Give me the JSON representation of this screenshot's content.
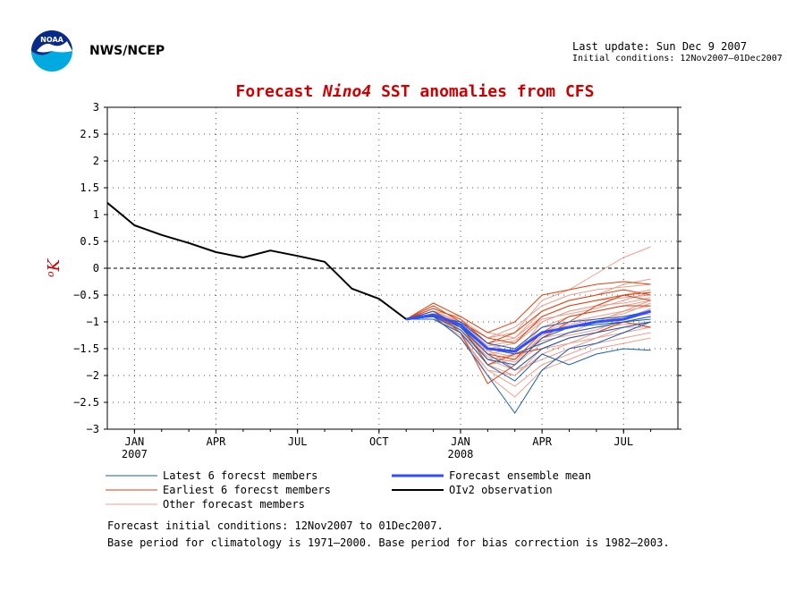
{
  "header": {
    "agency": "NWS/NCEP",
    "last_update": "Last update: Sun Dec 9 2007",
    "initial_conditions": "Initial conditions: 12Nov2007–01Dec2007",
    "logo_text": "NOAA"
  },
  "chart_data": {
    "type": "line",
    "title_parts": [
      "Forecast ",
      "Nino4",
      "  SST anomalies from CFS"
    ],
    "ylabel": "oK",
    "ylim": [
      -3,
      3
    ],
    "yticks": [
      "3",
      "2.5",
      "2",
      "1.5",
      "1",
      "0.5",
      "0",
      "−0.5",
      "−1",
      "−1.5",
      "−2",
      "−2.5",
      "−3"
    ],
    "ytick_values": [
      3,
      2.5,
      2,
      1.5,
      1,
      0.5,
      0,
      -0.5,
      -1,
      -1.5,
      -2,
      -2.5,
      -3
    ],
    "x_range_months": [
      -1,
      20
    ],
    "xticks": [
      {
        "label": "JAN",
        "sub": "2007",
        "m": 0
      },
      {
        "label": "APR",
        "sub": "",
        "m": 3
      },
      {
        "label": "JUL",
        "sub": "",
        "m": 6
      },
      {
        "label": "OCT",
        "sub": "",
        "m": 9
      },
      {
        "label": "JAN",
        "sub": "2008",
        "m": 12
      },
      {
        "label": "APR",
        "sub": "",
        "m": 15
      },
      {
        "label": "JUL",
        "sub": "",
        "m": 18
      }
    ],
    "grid": true,
    "zero_line": true,
    "series": [
      {
        "name": "OIv2 observation",
        "role": "observation",
        "color": "#000000",
        "x": [
          -1,
          0,
          1,
          2,
          3,
          4,
          5,
          6,
          7,
          8,
          9,
          10
        ],
        "y": [
          1.22,
          0.8,
          0.62,
          0.47,
          0.3,
          0.2,
          0.33,
          0.23,
          0.12,
          -0.38,
          -0.57,
          -0.95
        ]
      },
      {
        "name": "Forecast ensemble mean",
        "role": "mean",
        "color": "#3050ff",
        "x": [
          10,
          11,
          12,
          13,
          14,
          15,
          16,
          17,
          18,
          19
        ],
        "y": [
          -0.95,
          -0.87,
          -1.05,
          -1.5,
          -1.55,
          -1.2,
          -1.1,
          -1.0,
          -0.95,
          -0.8
        ]
      }
    ],
    "members": {
      "x": [
        10,
        11,
        12,
        13,
        14,
        15,
        16,
        17,
        18,
        19
      ],
      "latest": {
        "name": "Latest 6 forecst members",
        "color": "#1a5fb4",
        "lines": [
          [
            -0.95,
            -0.9,
            -1.3,
            -2.0,
            -2.7,
            -1.9,
            -1.5,
            -1.4,
            -1.2,
            -1.0
          ],
          [
            -0.95,
            -0.95,
            -1.2,
            -1.8,
            -2.1,
            -1.6,
            -1.8,
            -1.6,
            -1.5,
            -1.53
          ],
          [
            -0.95,
            -0.85,
            -1.1,
            -1.5,
            -1.6,
            -1.4,
            -1.2,
            -1.1,
            -1.0,
            -0.9
          ],
          [
            -0.95,
            -0.9,
            -1.0,
            -1.4,
            -1.5,
            -1.1,
            -1.0,
            -0.95,
            -0.9,
            -0.8
          ],
          [
            -0.95,
            -0.8,
            -1.1,
            -1.6,
            -1.9,
            -1.5,
            -1.3,
            -1.2,
            -1.1,
            -1.0
          ],
          [
            -0.95,
            -0.9,
            -1.15,
            -1.7,
            -1.8,
            -1.3,
            -1.1,
            -1.05,
            -1.0,
            -0.95
          ]
        ]
      },
      "earliest": {
        "name": "Earliest 6 forecst members",
        "color": "#e04010",
        "lines": [
          [
            -0.95,
            -0.65,
            -0.9,
            -1.2,
            -1.0,
            -0.5,
            -0.4,
            -0.3,
            -0.25,
            -0.3
          ],
          [
            -0.95,
            -0.8,
            -1.2,
            -2.15,
            -1.8,
            -1.3,
            -1.0,
            -0.7,
            -0.5,
            -0.6
          ],
          [
            -0.95,
            -0.7,
            -1.0,
            -1.3,
            -1.4,
            -0.9,
            -0.7,
            -0.6,
            -0.5,
            -0.45
          ],
          [
            -0.95,
            -0.9,
            -1.1,
            -1.6,
            -1.7,
            -1.2,
            -0.9,
            -0.8,
            -0.7,
            -0.7
          ],
          [
            -0.95,
            -0.75,
            -0.95,
            -1.4,
            -1.2,
            -0.8,
            -0.6,
            -0.5,
            -0.4,
            -0.5
          ],
          [
            -0.95,
            -0.85,
            -1.05,
            -1.8,
            -1.6,
            -1.5,
            -1.3,
            -1.2,
            -1.0,
            -1.1
          ]
        ]
      },
      "other": {
        "name": "Other forecast members",
        "color": "#e9a090",
        "lines": [
          [
            -0.95,
            -0.8,
            -1.0,
            -1.3,
            -1.2,
            -0.6,
            -0.4,
            -0.1,
            0.2,
            0.4
          ],
          [
            -0.95,
            -0.9,
            -1.3,
            -1.9,
            -2.2,
            -1.8,
            -1.6,
            -1.4,
            -1.3,
            -1.2
          ],
          [
            -0.95,
            -0.85,
            -1.1,
            -1.5,
            -1.4,
            -1.0,
            -0.8,
            -0.7,
            -0.5,
            -0.4
          ],
          [
            -0.95,
            -0.95,
            -1.2,
            -1.7,
            -1.9,
            -1.5,
            -1.4,
            -1.3,
            -1.2,
            -1.1
          ],
          [
            -0.95,
            -0.8,
            -1.0,
            -1.4,
            -1.3,
            -0.8,
            -0.6,
            -0.5,
            -0.3,
            -0.2
          ],
          [
            -0.95,
            -0.9,
            -1.2,
            -2.0,
            -2.4,
            -1.9,
            -1.7,
            -1.5,
            -1.4,
            -1.3
          ],
          [
            -0.95,
            -0.85,
            -1.05,
            -1.6,
            -1.5,
            -1.2,
            -1.0,
            -0.9,
            -0.8,
            -0.7
          ],
          [
            -0.95,
            -0.75,
            -0.95,
            -1.3,
            -1.1,
            -0.7,
            -0.5,
            -0.4,
            -0.35,
            -0.3
          ],
          [
            -0.95,
            -0.9,
            -1.1,
            -1.7,
            -1.8,
            -1.4,
            -1.2,
            -1.0,
            -0.9,
            -0.85
          ],
          [
            -0.95,
            -0.8,
            -1.2,
            -1.8,
            -1.7,
            -1.3,
            -1.1,
            -1.0,
            -0.8,
            -0.6
          ],
          [
            -0.95,
            -0.95,
            -1.25,
            -1.9,
            -2.0,
            -1.6,
            -1.4,
            -1.2,
            -1.0,
            -0.9
          ],
          [
            -0.95,
            -0.85,
            -1.0,
            -1.4,
            -1.6,
            -1.1,
            -0.9,
            -0.8,
            -0.7,
            -0.6
          ],
          [
            -0.95,
            -0.8,
            -0.9,
            -1.2,
            -1.3,
            -0.9,
            -0.7,
            -0.6,
            -0.55,
            -0.5
          ],
          [
            -0.95,
            -0.9,
            -1.15,
            -1.6,
            -1.7,
            -1.3,
            -1.2,
            -1.1,
            -1.05,
            -1.0
          ],
          [
            -0.95,
            -0.85,
            -1.1,
            -1.5,
            -1.9,
            -1.7,
            -1.5,
            -1.3,
            -1.1,
            -1.0
          ],
          [
            -0.95,
            -0.8,
            -1.05,
            -1.7,
            -1.6,
            -1.0,
            -0.8,
            -0.7,
            -0.65,
            -0.55
          ],
          [
            -0.95,
            -0.9,
            -1.2,
            -1.8,
            -2.0,
            -1.5,
            -1.3,
            -1.2,
            -1.1,
            -1.1
          ],
          [
            -0.95,
            -0.85,
            -1.0,
            -1.45,
            -1.35,
            -0.95,
            -0.85,
            -0.75,
            -0.6,
            -0.45
          ],
          [
            -0.95,
            -0.95,
            -1.1,
            -1.55,
            -1.65,
            -1.35,
            -1.25,
            -1.15,
            -0.95,
            -0.75
          ],
          [
            -0.95,
            -0.8,
            -1.15,
            -1.65,
            -1.75,
            -1.25,
            -1.05,
            -0.95,
            -0.85,
            -0.65
          ]
        ]
      }
    },
    "legend": {
      "placement": "bottom",
      "entries": [
        {
          "label": "Latest 6 forecst members",
          "color": "#1a5fb4",
          "width": 1
        },
        {
          "label": "Forecast ensemble mean",
          "color": "#3050ff",
          "width": 3
        },
        {
          "label": "Earliest 6 forecst members",
          "color": "#e04010",
          "width": 1
        },
        {
          "label": "OIv2 observation",
          "color": "#000000",
          "width": 2
        },
        {
          "label": "Other forecast members",
          "color": "#e9a090",
          "width": 1
        }
      ]
    }
  },
  "footer": {
    "line1": "Forecast initial conditions: 12Nov2007 to 01Dec2007.",
    "line2": "Base period for climatology is 1971–2000. Base period for bias correction is 1982–2003."
  }
}
